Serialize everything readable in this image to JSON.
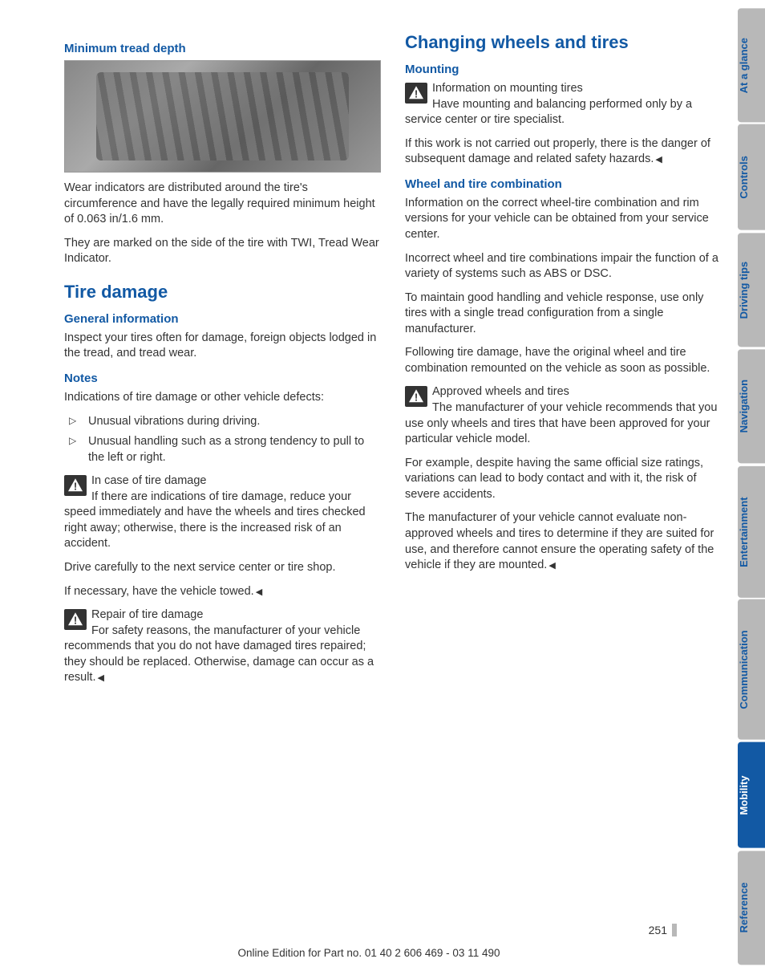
{
  "left": {
    "h_min_tread": "Minimum tread depth",
    "p_wear1": "Wear indicators are distributed around the tire's circumference and have the legally required minimum height of 0.063 in/1.6 mm.",
    "p_wear2": "They are marked on the side of the tire with TWI, Tread Wear Indicator.",
    "h_tire_damage": "Tire damage",
    "h_general": "General information",
    "p_general": "Inspect your tires often for damage, foreign objects lodged in the tread, and tread wear.",
    "h_notes": "Notes",
    "p_notes_intro": "Indications of tire damage or other vehicle defects:",
    "li1": "Unusual vibrations during driving.",
    "li2": "Unusual handling such as a strong tendency to pull to the left or right.",
    "warn1_title": "In case of tire damage",
    "warn1_body1": "If there are indications of tire damage, reduce your speed immediately and have the wheels and tires checked right away; otherwise, there is the increased risk of an accident.",
    "warn1_body2": "Drive carefully to the next service center or tire shop.",
    "warn1_body3": "If necessary, have the vehicle towed.",
    "warn2_title": "Repair of tire damage",
    "warn2_body": "For safety reasons, the manufacturer of your vehicle recommends that you do not have damaged tires repaired; they should be replaced. Otherwise, damage can occur as a result."
  },
  "right": {
    "h_changing": "Changing wheels and tires",
    "h_mounting": "Mounting",
    "warn_m_title": "Information on mounting tires",
    "warn_m_body1": "Have mounting and balancing performed only by a service center or tire specialist.",
    "warn_m_body2": "If this work is not carried out properly, there is the danger of subsequent damage and related safety hazards.",
    "h_combo": "Wheel and tire combination",
    "p_combo1": "Information on the correct wheel-tire combination and rim versions for your vehicle can be obtained from your service center.",
    "p_combo2": "Incorrect wheel and tire combinations impair the function of a variety of systems such as ABS or DSC.",
    "p_combo3": "To maintain good handling and vehicle response, use only tires with a single tread configuration from a single manufacturer.",
    "p_combo4": "Following tire damage, have the original wheel and tire combination remounted on the vehicle as soon as possible.",
    "warn_a_title": "Approved wheels and tires",
    "warn_a_body1": "The manufacturer of your vehicle recommends that you use only wheels and tires that have been approved for your particular vehicle model.",
    "warn_a_body2": "For example, despite having the same official size ratings, variations can lead to body contact and with it, the risk of severe accidents.",
    "warn_a_body3": "The manufacturer of your vehicle cannot evaluate non-approved wheels and tires to determine if they are suited for use, and therefore cannot ensure the operating safety of the vehicle if they are mounted."
  },
  "tabs": {
    "t1": "At a glance",
    "t2": "Controls",
    "t3": "Driving tips",
    "t4": "Navigation",
    "t5": "Entertainment",
    "t6": "Communication",
    "t7": "Mobility",
    "t8": "Reference"
  },
  "footer": {
    "page": "251",
    "line": "Online Edition for Part no. 01 40 2 606 469 - 03 11 490"
  },
  "colors": {
    "accent": "#1259a4",
    "tab_inactive_bg": "#b8b8b8",
    "tab_active_bg": "#1259a4",
    "text": "#333333"
  }
}
